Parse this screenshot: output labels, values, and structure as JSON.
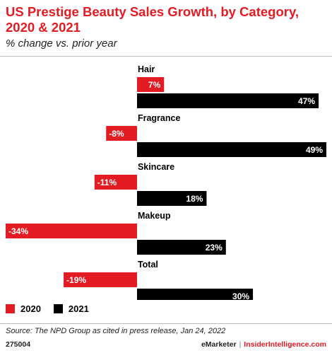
{
  "header": {
    "title": "US Prestige Beauty Sales Growth, by Category, 2020 & 2021",
    "subtitle": "% change vs. prior year"
  },
  "colors": {
    "s2020": "#e31c23",
    "s2021": "#000000",
    "accent": "#e31c23"
  },
  "chart_data": {
    "type": "bar",
    "orientation": "horizontal",
    "categories": [
      "Hair",
      "Fragrance",
      "Skincare",
      "Makeup",
      "Total"
    ],
    "series": [
      {
        "name": "2020",
        "values": [
          7,
          -8,
          -11,
          -34,
          -19
        ],
        "labels": [
          "7%",
          "-8%",
          "-11%",
          "-34%",
          "-19%"
        ]
      },
      {
        "name": "2021",
        "values": [
          47,
          49,
          18,
          23,
          30
        ],
        "labels": [
          "47%",
          "49%",
          "18%",
          "23%",
          "30%"
        ]
      }
    ],
    "xlim": [
      -34,
      49
    ],
    "grid": false,
    "legend": "bottom-left"
  },
  "legend": {
    "label_2020": "2020",
    "label_2021": "2021"
  },
  "footer": {
    "source": "Source: The NPD Group as cited in press release, Jan 24, 2022",
    "chart_id": "275004",
    "brand_left": "eMarketer",
    "separator": "|",
    "brand_right": "InsiderIntelligence.com"
  }
}
